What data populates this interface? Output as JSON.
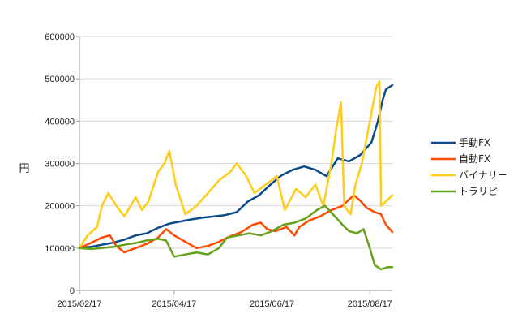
{
  "chart_data": {
    "type": "line",
    "ylabel": "円",
    "ylim": [
      0,
      600000
    ],
    "y_ticks": [
      "0",
      "100000",
      "200000",
      "300000",
      "400000",
      "500000",
      "600000"
    ],
    "x_ticks": [
      {
        "label": "2015/02/17",
        "x": "2015-02-17"
      },
      {
        "label": "2015/04/17",
        "x": "2015-04-17"
      },
      {
        "label": "2015/06/17",
        "x": "2015-06-17"
      },
      {
        "label": "2015/08/17",
        "x": "2015-08-17"
      }
    ],
    "xlim": [
      "2015-02-17",
      "2015-08-31"
    ],
    "grid": "horizontal",
    "legend_position": "right",
    "series": [
      {
        "name": "手動FX",
        "color": "#0b4a8b",
        "points": [
          [
            "2015-02-17",
            100000
          ],
          [
            "2015-02-24",
            103000
          ],
          [
            "2015-03-03",
            108000
          ],
          [
            "2015-03-10",
            113000
          ],
          [
            "2015-03-17",
            120000
          ],
          [
            "2015-03-24",
            130000
          ],
          [
            "2015-03-31",
            135000
          ],
          [
            "2015-04-07",
            148000
          ],
          [
            "2015-04-14",
            158000
          ],
          [
            "2015-04-21",
            163000
          ],
          [
            "2015-04-28",
            168000
          ],
          [
            "2015-05-05",
            172000
          ],
          [
            "2015-05-12",
            175000
          ],
          [
            "2015-05-19",
            178000
          ],
          [
            "2015-05-26",
            185000
          ],
          [
            "2015-06-02",
            210000
          ],
          [
            "2015-06-09",
            225000
          ],
          [
            "2015-06-16",
            250000
          ],
          [
            "2015-06-23",
            272000
          ],
          [
            "2015-06-30",
            285000
          ],
          [
            "2015-07-07",
            293000
          ],
          [
            "2015-07-14",
            285000
          ],
          [
            "2015-07-21",
            270000
          ],
          [
            "2015-07-28",
            312000
          ],
          [
            "2015-08-04",
            305000
          ],
          [
            "2015-08-11",
            320000
          ],
          [
            "2015-08-18",
            350000
          ],
          [
            "2015-08-22",
            400000
          ],
          [
            "2015-08-25",
            450000
          ],
          [
            "2015-08-27",
            475000
          ],
          [
            "2015-08-31",
            485000
          ]
        ]
      },
      {
        "name": "自動FX",
        "color": "#ff4a00",
        "points": [
          [
            "2015-02-17",
            100000
          ],
          [
            "2015-02-24",
            112000
          ],
          [
            "2015-03-03",
            125000
          ],
          [
            "2015-03-08",
            130000
          ],
          [
            "2015-03-12",
            105000
          ],
          [
            "2015-03-17",
            90000
          ],
          [
            "2015-03-24",
            100000
          ],
          [
            "2015-03-31",
            110000
          ],
          [
            "2015-04-07",
            125000
          ],
          [
            "2015-04-12",
            145000
          ],
          [
            "2015-04-17",
            130000
          ],
          [
            "2015-04-24",
            115000
          ],
          [
            "2015-05-01",
            100000
          ],
          [
            "2015-05-08",
            105000
          ],
          [
            "2015-05-15",
            115000
          ],
          [
            "2015-05-22",
            128000
          ],
          [
            "2015-05-29",
            138000
          ],
          [
            "2015-06-05",
            155000
          ],
          [
            "2015-06-10",
            160000
          ],
          [
            "2015-06-14",
            145000
          ],
          [
            "2015-06-19",
            140000
          ],
          [
            "2015-06-26",
            150000
          ],
          [
            "2015-07-01",
            130000
          ],
          [
            "2015-07-04",
            150000
          ],
          [
            "2015-07-10",
            165000
          ],
          [
            "2015-07-17",
            175000
          ],
          [
            "2015-07-24",
            190000
          ],
          [
            "2015-07-31",
            200000
          ],
          [
            "2015-08-04",
            215000
          ],
          [
            "2015-08-07",
            225000
          ],
          [
            "2015-08-11",
            212000
          ],
          [
            "2015-08-15",
            195000
          ],
          [
            "2015-08-20",
            185000
          ],
          [
            "2015-08-24",
            180000
          ],
          [
            "2015-08-27",
            155000
          ],
          [
            "2015-08-31",
            138000
          ]
        ]
      },
      {
        "name": "バイナリー",
        "color": "#ffcc1a",
        "points": [
          [
            "2015-02-17",
            100000
          ],
          [
            "2015-02-22",
            130000
          ],
          [
            "2015-02-28",
            150000
          ],
          [
            "2015-03-03",
            200000
          ],
          [
            "2015-03-07",
            230000
          ],
          [
            "2015-03-12",
            200000
          ],
          [
            "2015-03-17",
            175000
          ],
          [
            "2015-03-24",
            220000
          ],
          [
            "2015-03-28",
            190000
          ],
          [
            "2015-04-01",
            210000
          ],
          [
            "2015-04-07",
            280000
          ],
          [
            "2015-04-11",
            300000
          ],
          [
            "2015-04-14",
            330000
          ],
          [
            "2015-04-18",
            250000
          ],
          [
            "2015-04-24",
            180000
          ],
          [
            "2015-05-01",
            200000
          ],
          [
            "2015-05-08",
            230000
          ],
          [
            "2015-05-15",
            260000
          ],
          [
            "2015-05-22",
            280000
          ],
          [
            "2015-05-26",
            300000
          ],
          [
            "2015-06-01",
            270000
          ],
          [
            "2015-06-06",
            230000
          ],
          [
            "2015-06-13",
            250000
          ],
          [
            "2015-06-20",
            270000
          ],
          [
            "2015-06-25",
            190000
          ],
          [
            "2015-07-02",
            240000
          ],
          [
            "2015-07-08",
            220000
          ],
          [
            "2015-07-14",
            250000
          ],
          [
            "2015-07-19",
            200000
          ],
          [
            "2015-07-24",
            300000
          ],
          [
            "2015-07-27",
            380000
          ],
          [
            "2015-07-30",
            445000
          ],
          [
            "2015-08-01",
            200000
          ],
          [
            "2015-08-05",
            180000
          ],
          [
            "2015-08-08",
            250000
          ],
          [
            "2015-08-12",
            300000
          ],
          [
            "2015-08-15",
            360000
          ],
          [
            "2015-08-18",
            420000
          ],
          [
            "2015-08-21",
            480000
          ],
          [
            "2015-08-23",
            495000
          ],
          [
            "2015-08-24",
            200000
          ],
          [
            "2015-08-27",
            210000
          ],
          [
            "2015-08-31",
            225000
          ]
        ]
      },
      {
        "name": "トラリピ",
        "color": "#66a11a",
        "points": [
          [
            "2015-02-17",
            100000
          ],
          [
            "2015-02-24",
            98000
          ],
          [
            "2015-03-03",
            100000
          ],
          [
            "2015-03-10",
            103000
          ],
          [
            "2015-03-17",
            108000
          ],
          [
            "2015-03-24",
            112000
          ],
          [
            "2015-03-31",
            118000
          ],
          [
            "2015-04-07",
            122000
          ],
          [
            "2015-04-12",
            118000
          ],
          [
            "2015-04-17",
            80000
          ],
          [
            "2015-04-24",
            85000
          ],
          [
            "2015-05-01",
            90000
          ],
          [
            "2015-05-08",
            85000
          ],
          [
            "2015-05-15",
            100000
          ],
          [
            "2015-05-20",
            125000
          ],
          [
            "2015-05-27",
            130000
          ],
          [
            "2015-06-03",
            135000
          ],
          [
            "2015-06-10",
            130000
          ],
          [
            "2015-06-17",
            140000
          ],
          [
            "2015-06-24",
            155000
          ],
          [
            "2015-07-01",
            160000
          ],
          [
            "2015-07-08",
            170000
          ],
          [
            "2015-07-15",
            190000
          ],
          [
            "2015-07-20",
            200000
          ],
          [
            "2015-07-25",
            180000
          ],
          [
            "2015-07-31",
            155000
          ],
          [
            "2015-08-04",
            140000
          ],
          [
            "2015-08-09",
            135000
          ],
          [
            "2015-08-13",
            145000
          ],
          [
            "2015-08-17",
            100000
          ],
          [
            "2015-08-20",
            60000
          ],
          [
            "2015-08-24",
            50000
          ],
          [
            "2015-08-28",
            55000
          ],
          [
            "2015-08-31",
            55000
          ]
        ]
      }
    ]
  }
}
